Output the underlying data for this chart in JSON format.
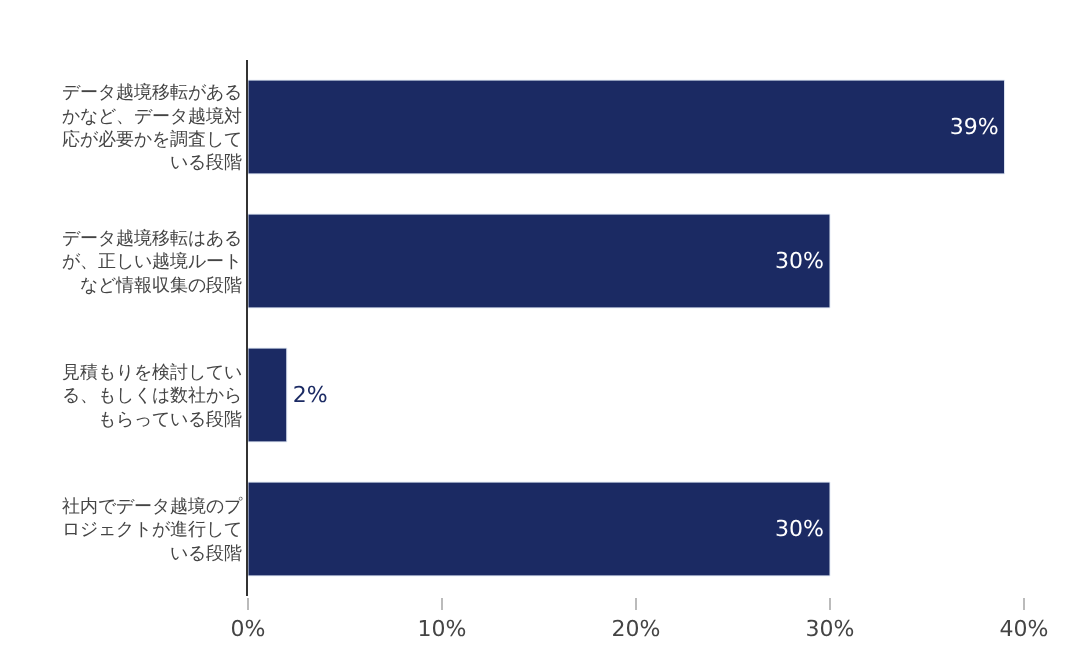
{
  "chart_data": {
    "type": "bar",
    "orientation": "horizontal",
    "categories": [
      "データ越境移転があるかなど、データ越境対応が必要かを調査している段階",
      "データ越境移転はあるが、正しい越境ルートなど情報収集の段階",
      "見積もりを検討している、もしくは数社からもらっている段階",
      "社内でデータ越境のプロジェクトが進行している段階"
    ],
    "values": [
      39,
      30,
      2,
      30
    ],
    "color": "#1b2a63",
    "data_labels": true,
    "value_labels": [
      "39%",
      "30%",
      "2%",
      "30%"
    ],
    "xlim": [
      0,
      40
    ],
    "xticks": [
      {
        "value": 0,
        "label": "0%"
      },
      {
        "value": 10,
        "label": "10%"
      },
      {
        "value": 20,
        "label": "20%"
      },
      {
        "value": 30,
        "label": "30%"
      },
      {
        "value": 40,
        "label": "40%"
      }
    ],
    "legend": false
  }
}
